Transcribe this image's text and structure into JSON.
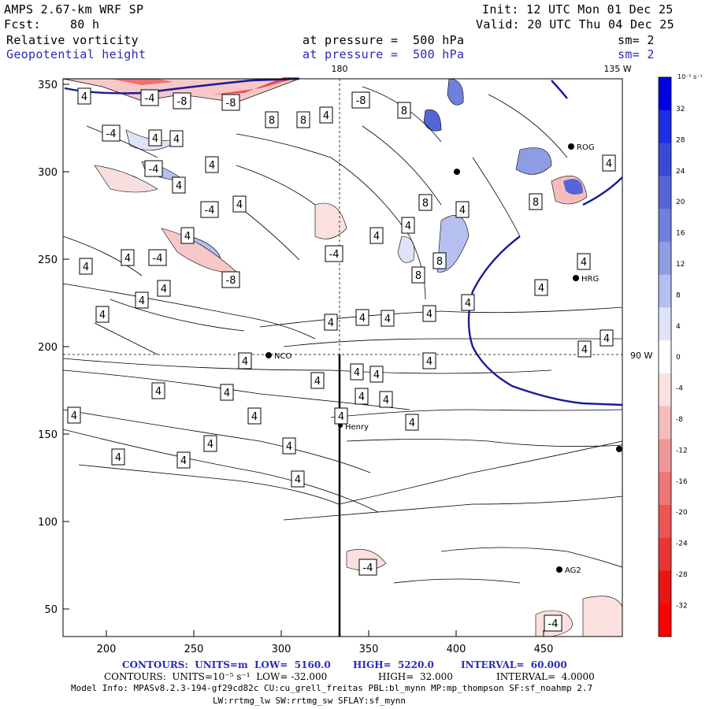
{
  "header": {
    "model": "AMPS 2.67-km WRF SP",
    "fcst": "Fcst:    80 h",
    "init": "Init: 12 UTC Mon 01 Dec 25",
    "valid": "Valid: 20 UTC Thu 04 Dec 25",
    "field1": "Relative vorticity",
    "field1_level": "at pressure =  500 hPa",
    "field1_sm": "sm= 2",
    "field2": "Geopotential height",
    "field2_level": "at pressure =  500 hPa",
    "field2_sm": "sm= 2"
  },
  "map": {
    "x_ticks": [
      "200",
      "250",
      "300",
      "350",
      "400",
      "450"
    ],
    "y_ticks": [
      "50",
      "100",
      "150",
      "200",
      "250",
      "300",
      "350"
    ],
    "meridian_180": "180",
    "meridian_135w": "135 W",
    "meridian_90w": "90 W",
    "stations": [
      "NCO",
      "Henry",
      "HRG",
      "AG2",
      "ROG"
    ],
    "contour_labels": [
      "4",
      "-4",
      "-8",
      "-8",
      "-8",
      "-4",
      "4",
      "4",
      "8",
      "8",
      "4",
      "4",
      "-4",
      "4",
      "4",
      "-4",
      "4",
      "-4",
      "4",
      "4",
      "8",
      "4",
      "4",
      "4",
      "8",
      "8",
      "4",
      "4",
      "-4",
      "4",
      "4",
      "4",
      "4",
      "4",
      "4",
      "4",
      "4",
      "4",
      "4",
      "4",
      "4",
      "4",
      "4",
      "4",
      "4",
      "4",
      "4",
      "4",
      "4",
      "4",
      "4",
      "4",
      "4",
      "-4",
      "-4",
      "4",
      "-8",
      "4",
      "4",
      "4",
      "8",
      "8",
      "4"
    ]
  },
  "colorbar": {
    "unit": "10⁻⁵ s⁻¹",
    "ticks": [
      "32",
      "28",
      "24",
      "20",
      "16",
      "12",
      "8",
      "4",
      "0",
      "-4",
      "-8",
      "-12",
      "-16",
      "-20",
      "-24",
      "-28",
      "-32"
    ],
    "colors": [
      "#0000e6",
      "#1f2ee0",
      "#3a4ad8",
      "#5565d8",
      "#7080dc",
      "#8e9ce2",
      "#b5bff0",
      "#dfe3f8",
      "#ffffff",
      "#fbe0e0",
      "#f5bcbc",
      "#f09898",
      "#ee7676",
      "#ec5555",
      "#ea3535",
      "#e81515",
      "#ff0000"
    ]
  },
  "footer": {
    "line1_a": "CONTOURS:  UNITS=m  LOW=  5160.0",
    "line1_b": "HIGH=  5220.0",
    "line1_c": "INTERVAL=  60.000",
    "line2_a": "CONTOURS:  UNITS=10⁻⁵ s⁻¹  LOW= -32.000",
    "line2_b": "HIGH=  32.000",
    "line2_c": "INTERVAL=  4.0000",
    "line3": "Model Info: MPASv8.2.3-194-gf29cd82c CU:cu_grell_freitas PBL:bl_mynn MP:mp_thompson SF:sf_noahmp 2.7",
    "line4": "LW:rrtmg_lw SW:rrtmg_sw SFLAY:sf_mynn"
  }
}
